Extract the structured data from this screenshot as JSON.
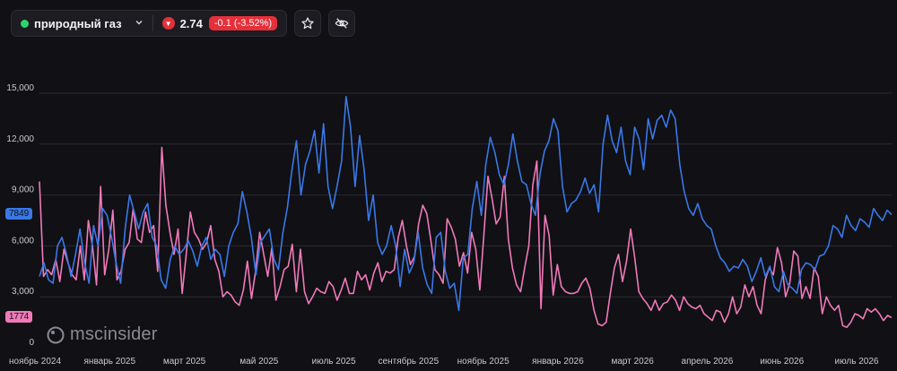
{
  "header": {
    "ticker_name": "природный газ",
    "price": "2.74",
    "change": "-0.1 (-3.52%)",
    "status_color": "#2fd36b",
    "change_color": "#e5303a",
    "icons": [
      "chevron-down-icon",
      "triangle-down-icon",
      "star-icon",
      "eye-off-icon"
    ]
  },
  "branding": {
    "logo_text": "mscinsider"
  },
  "chart_data": {
    "type": "line",
    "ylim": [
      0,
      15000
    ],
    "y_ticks": [
      "15,000",
      "12,000",
      "9,000",
      "6,000",
      "3,000",
      "0"
    ],
    "x_ticks": [
      "ноябрь 2024",
      "январь 2025",
      "март 2025",
      "май 2025",
      "июль 2025",
      "сентябрь 2025",
      "ноябрь 2025",
      "январь 2026",
      "март 2026",
      "апрель 2026",
      "июнь 2026",
      "июль 2026"
    ],
    "grid": true,
    "series": [
      {
        "color": "#3a78e6",
        "last_label": "7849",
        "values": [
          4200,
          5000,
          4000,
          3800,
          6000,
          6500,
          5500,
          4200,
          5500,
          7000,
          5000,
          3800,
          7200,
          6000,
          8200,
          7800,
          6500,
          5000,
          3800,
          7000,
          9000,
          8000,
          7000,
          8000,
          8500,
          6500,
          6000,
          4000,
          3500,
          5200,
          6000,
          5500,
          5800,
          6300,
          5700,
          4800,
          6000,
          6500,
          5200,
          5800,
          5500,
          4200,
          6000,
          6800,
          7300,
          9200,
          8000,
          6500,
          4300,
          6200,
          6600,
          7000,
          5200,
          4600,
          6800,
          8300,
          10500,
          12200,
          9000,
          10800,
          11600,
          12800,
          10300,
          13200,
          9500,
          8200,
          9500,
          11000,
          14800,
          13000,
          9500,
          12500,
          10500,
          7500,
          9000,
          6200,
          5500,
          6000,
          7200,
          6000,
          3600,
          5800,
          4400,
          5000,
          6800,
          4700,
          3700,
          3200,
          6500,
          6800,
          4500,
          3500,
          3800,
          2200,
          5300,
          5500,
          8200,
          9800,
          7800,
          10800,
          12400,
          11500,
          10200,
          9600,
          10800,
          12600,
          11000,
          9800,
          9600,
          8500,
          7800,
          10200,
          11600,
          12200,
          13500,
          12800,
          9500,
          8000,
          8500,
          8700,
          9200,
          10000,
          9100,
          9600,
          8000,
          12000,
          13700,
          12200,
          11500,
          13000,
          11000,
          10200,
          13000,
          12300,
          10500,
          13500,
          12300,
          13400,
          13700,
          13000,
          14000,
          13500,
          10800,
          9200,
          8200,
          7800,
          8500,
          7600,
          7200,
          7000,
          6000,
          5300,
          5000,
          4500,
          4800,
          4700,
          5200,
          4800,
          3900,
          4500,
          5300,
          4200,
          4800,
          3600,
          3300,
          4500,
          3700,
          3500,
          3200,
          4600,
          5000,
          4900,
          4600,
          5400,
          5500,
          6000,
          7200,
          7000,
          6500,
          7800,
          7200,
          6900,
          7600,
          7400,
          7100,
          8200,
          7800,
          7500,
          8100,
          7849
        ]
      },
      {
        "color": "#f07ab9",
        "last_label": "1774",
        "values": [
          9800,
          4200,
          4600,
          4300,
          5200,
          3900,
          5800,
          5000,
          4300,
          4000,
          6000,
          4000,
          7500,
          6000,
          3700,
          9500,
          4300,
          5800,
          8100,
          4000,
          4500,
          5800,
          6200,
          8200,
          6400,
          6200,
          8000,
          6800,
          7200,
          4500,
          11800,
          8400,
          6800,
          5500,
          7000,
          3200,
          5500,
          8000,
          6800,
          6400,
          5800,
          6200,
          7200,
          5200,
          4500,
          3000,
          3300,
          3100,
          2700,
          2500,
          3400,
          5100,
          2900,
          4500,
          6800,
          5500,
          4200,
          5900,
          2800,
          3600,
          4600,
          4800,
          6100,
          3300,
          5800,
          3300,
          2600,
          3000,
          3500,
          3300,
          3200,
          3900,
          3600,
          2800,
          3400,
          4100,
          3200,
          3200,
          4500,
          4000,
          4300,
          3400,
          4400,
          5000,
          3900,
          4500,
          4400,
          4600,
          6500,
          7500,
          6000,
          4900,
          5400,
          7300,
          8400,
          7900,
          6300,
          4600,
          4300,
          3800,
          7600,
          7100,
          6400,
          4800,
          5600,
          4400,
          6800,
          5800,
          3400,
          6700,
          10100,
          8800,
          7300,
          7700,
          10100,
          6400,
          4700,
          3700,
          3300,
          4700,
          6000,
          9600,
          11000,
          2300,
          7800,
          6600,
          3100,
          4900,
          3600,
          3300,
          3200,
          3200,
          3300,
          3800,
          4100,
          3500,
          2200,
          1400,
          1300,
          1500,
          3200,
          4700,
          5500,
          3900,
          5100,
          7000,
          5300,
          3300,
          2900,
          2600,
          2200,
          2800,
          2200,
          2600,
          2700,
          3100,
          2800,
          2200,
          3000,
          2600,
          2400,
          2300,
          2500,
          2000,
          1800,
          1600,
          2200,
          2100,
          1500,
          2000,
          3000,
          2000,
          2400,
          3700,
          3000,
          3600,
          2500,
          2000,
          4000,
          4700,
          4300,
          5900,
          5000,
          3000,
          3800,
          5700,
          5400,
          2900,
          3600,
          2900,
          4700,
          4200,
          2000,
          3000,
          2500,
          2200,
          2500,
          1300,
          1200,
          1500,
          2000,
          1900,
          1700,
          2300,
          2100,
          2300,
          2000,
          1600,
          1900,
          1774
        ]
      }
    ]
  }
}
